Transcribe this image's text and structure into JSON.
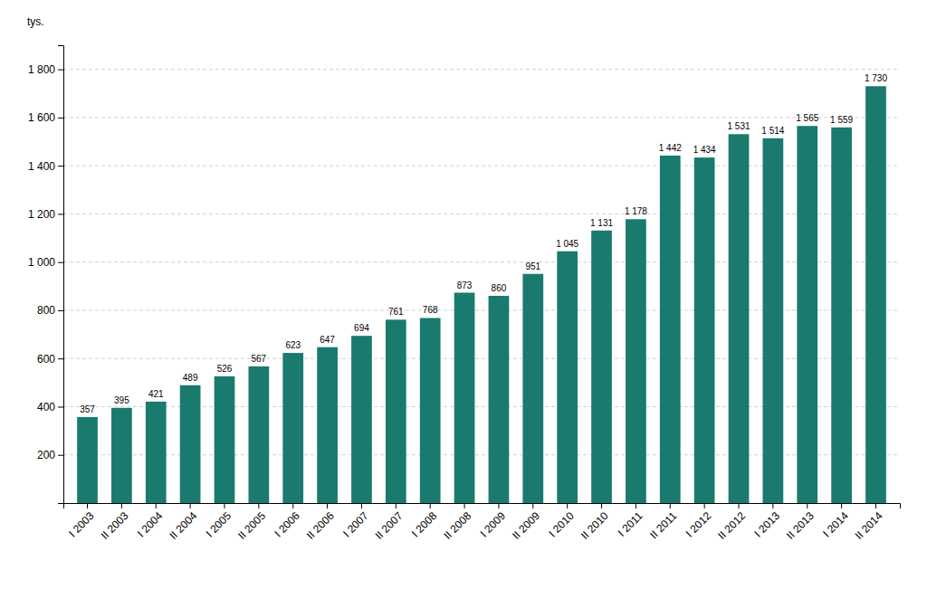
{
  "chart_data": {
    "type": "bar",
    "ylabel": "tys.",
    "categories": [
      "I 2003",
      "II 2003",
      "I 2004",
      "II 2004",
      "I 2005",
      "II 2005",
      "I 2006",
      "II 2006",
      "I 2007",
      "II 2007",
      "I 2008",
      "II 2008",
      "I 2009",
      "II 2009",
      "I 2010",
      "II 2010",
      "I 2011",
      "II 2011",
      "I 2012",
      "II 2012",
      "I 2013",
      "II 2013",
      "I 2014",
      "II 2014"
    ],
    "values": [
      357,
      395,
      421,
      489,
      526,
      567,
      623,
      647,
      694,
      761,
      768,
      873,
      860,
      951,
      1045,
      1131,
      1178,
      1442,
      1434,
      1531,
      1514,
      1565,
      1559,
      1730
    ],
    "value_labels": [
      "357",
      "395",
      "421",
      "489",
      "526",
      "567",
      "623",
      "647",
      "694",
      "761",
      "768",
      "873",
      "860",
      "951",
      "1 045",
      "1 131",
      "1 178",
      "1 442",
      "1 434",
      "1 531",
      "1 514",
      "1 565",
      "1 559",
      "1 730"
    ],
    "data_labels": true,
    "color": "#1a7a6e",
    "ylim": [
      0,
      1900
    ],
    "yticks": [
      200,
      400,
      600,
      800,
      {
        "value": 1000,
        "label": "1 000"
      },
      {
        "value": 1200,
        "label": "1 200"
      },
      {
        "value": 1400,
        "label": "1 400"
      },
      {
        "value": 1600,
        "label": "1 600"
      },
      {
        "value": 1800,
        "label": "1 800"
      }
    ],
    "grid": true
  }
}
